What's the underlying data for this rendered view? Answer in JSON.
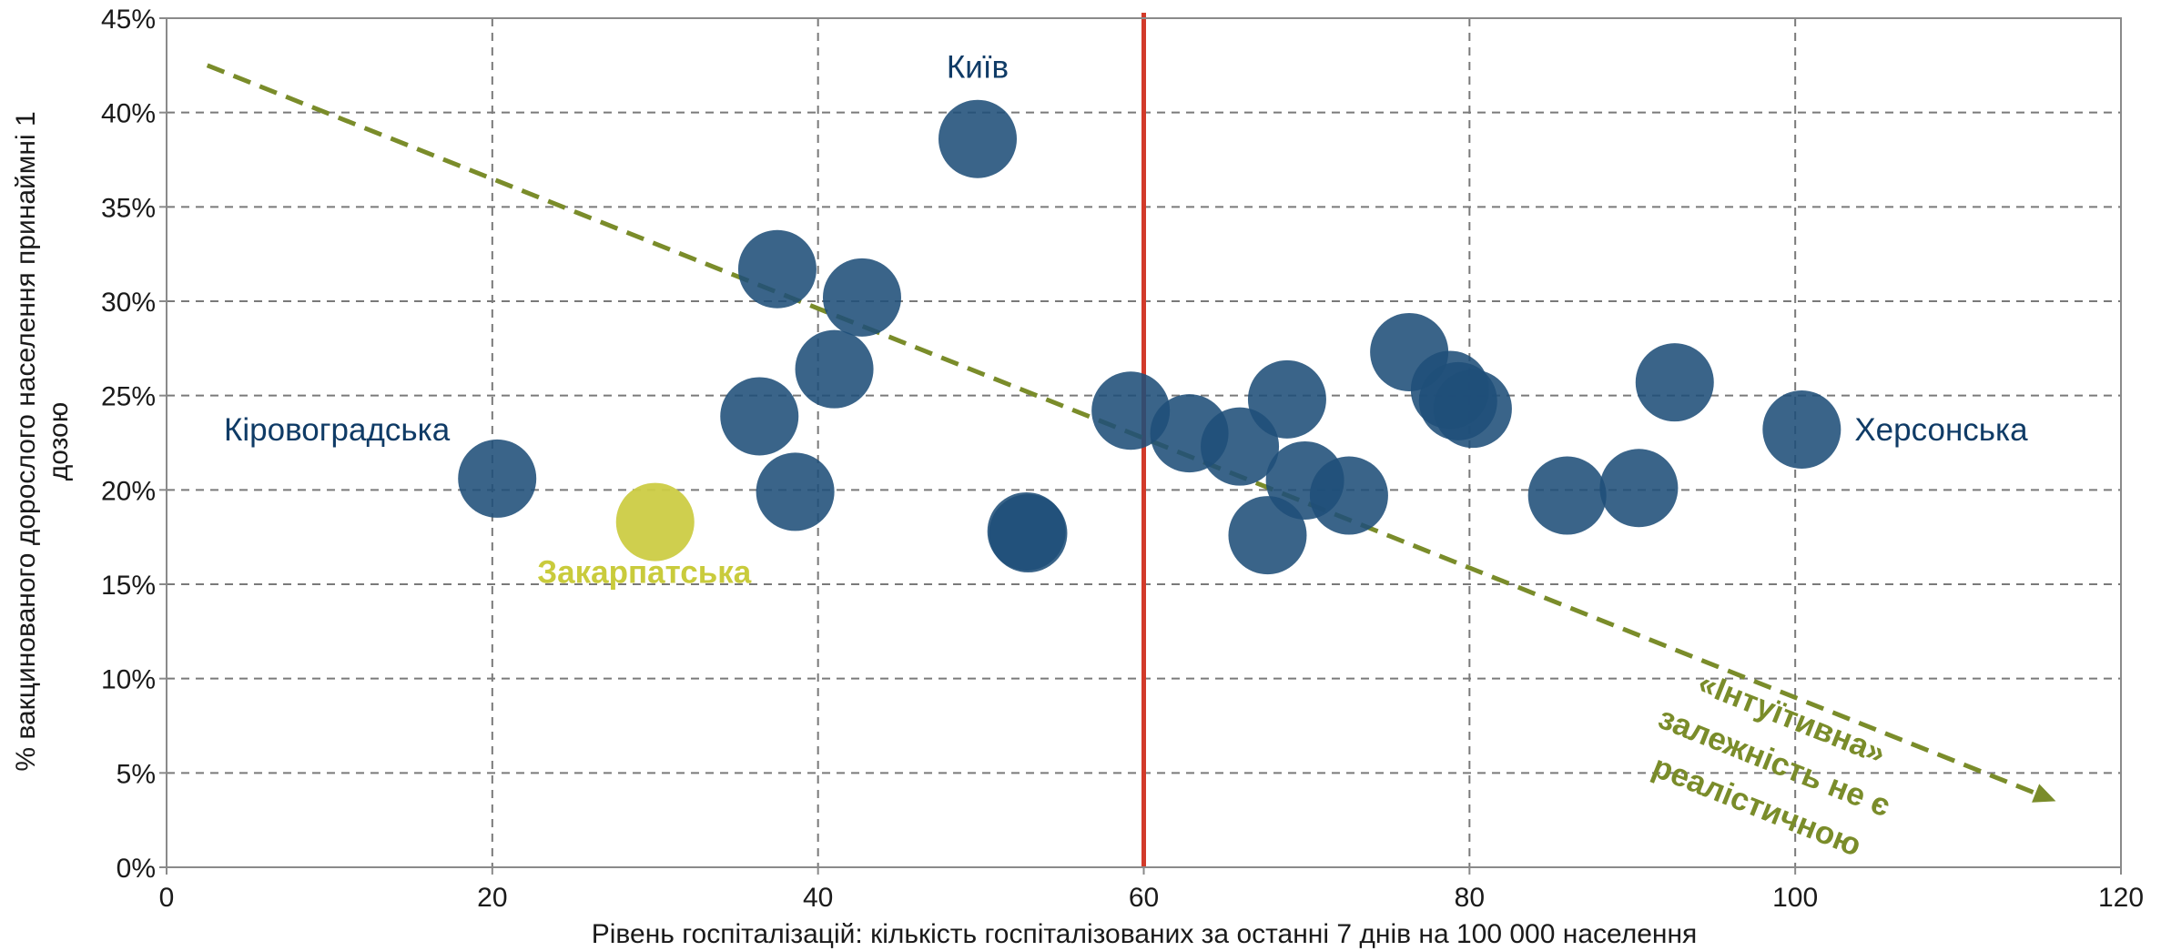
{
  "chart_data": {
    "type": "scatter",
    "title": "",
    "xlabel": "Рівень госпіталізацій: кількість госпіталізованих за останні 7 днів на 100 000 населення",
    "ylabel_line1": "% вакцинованого дорослого населення принаймні 1",
    "ylabel_line2": "дозою",
    "xlim": [
      0,
      120
    ],
    "ylim": [
      0,
      45
    ],
    "x_ticks": [
      0,
      20,
      40,
      60,
      80,
      100,
      120
    ],
    "x_tick_labels": [
      "0",
      "20",
      "40",
      "60",
      "80",
      "100",
      "120"
    ],
    "y_ticks": [
      0,
      5,
      10,
      15,
      20,
      25,
      30,
      35,
      40,
      45
    ],
    "y_tick_labels": [
      "0%",
      "5%",
      "10%",
      "15%",
      "20%",
      "25%",
      "30%",
      "35%",
      "40%",
      "45%"
    ],
    "grid": true,
    "vertical_reference_line": {
      "x": 60,
      "color": "#d23a2a"
    },
    "trend_arrow": {
      "from": [
        2.5,
        42.5
      ],
      "to": [
        116,
        3.5
      ],
      "color": "#7a8c2a",
      "style": "dashed"
    },
    "colors": {
      "bubble": "#1f4e79",
      "highlight": "#cccc44",
      "label": "#0f3b66",
      "trend": "#7a8c2a",
      "reference": "#d23a2a"
    },
    "points": [
      {
        "x": 20.3,
        "y": 20.6,
        "label": "Кіровоградська",
        "highlight": false
      },
      {
        "x": 30.0,
        "y": 18.3,
        "label": "Закарпатська",
        "highlight": true
      },
      {
        "x": 37.5,
        "y": 31.7,
        "label": "",
        "highlight": false
      },
      {
        "x": 42.7,
        "y": 30.2,
        "label": "",
        "highlight": false
      },
      {
        "x": 41.0,
        "y": 26.4,
        "label": "",
        "highlight": false
      },
      {
        "x": 36.4,
        "y": 23.9,
        "label": "",
        "highlight": false
      },
      {
        "x": 38.6,
        "y": 19.9,
        "label": "",
        "highlight": false
      },
      {
        "x": 49.8,
        "y": 38.6,
        "label": "Київ",
        "highlight": false
      },
      {
        "x": 52.8,
        "y": 17.8,
        "label": "",
        "highlight": false
      },
      {
        "x": 52.9,
        "y": 17.7,
        "label": "",
        "highlight": false
      },
      {
        "x": 59.2,
        "y": 24.2,
        "label": "",
        "highlight": false
      },
      {
        "x": 62.8,
        "y": 23.0,
        "label": "",
        "highlight": false
      },
      {
        "x": 65.9,
        "y": 22.3,
        "label": "",
        "highlight": false
      },
      {
        "x": 68.8,
        "y": 24.8,
        "label": "",
        "highlight": false
      },
      {
        "x": 69.9,
        "y": 20.5,
        "label": "",
        "highlight": false
      },
      {
        "x": 67.6,
        "y": 17.6,
        "label": "",
        "highlight": false
      },
      {
        "x": 72.6,
        "y": 19.7,
        "label": "",
        "highlight": false
      },
      {
        "x": 76.3,
        "y": 27.3,
        "label": "",
        "highlight": false
      },
      {
        "x": 78.8,
        "y": 25.3,
        "label": "",
        "highlight": false
      },
      {
        "x": 79.3,
        "y": 24.7,
        "label": "",
        "highlight": false
      },
      {
        "x": 80.2,
        "y": 24.3,
        "label": "",
        "highlight": false
      },
      {
        "x": 86.0,
        "y": 19.7,
        "label": "",
        "highlight": false
      },
      {
        "x": 90.4,
        "y": 20.1,
        "label": "",
        "highlight": false
      },
      {
        "x": 92.6,
        "y": 25.7,
        "label": "",
        "highlight": false
      },
      {
        "x": 100.4,
        "y": 23.2,
        "label": "Херсонська",
        "highlight": false
      }
    ],
    "annotation": {
      "lines": [
        "«Інтуїтивна»",
        "залежність не є",
        "реалістичною"
      ]
    }
  }
}
